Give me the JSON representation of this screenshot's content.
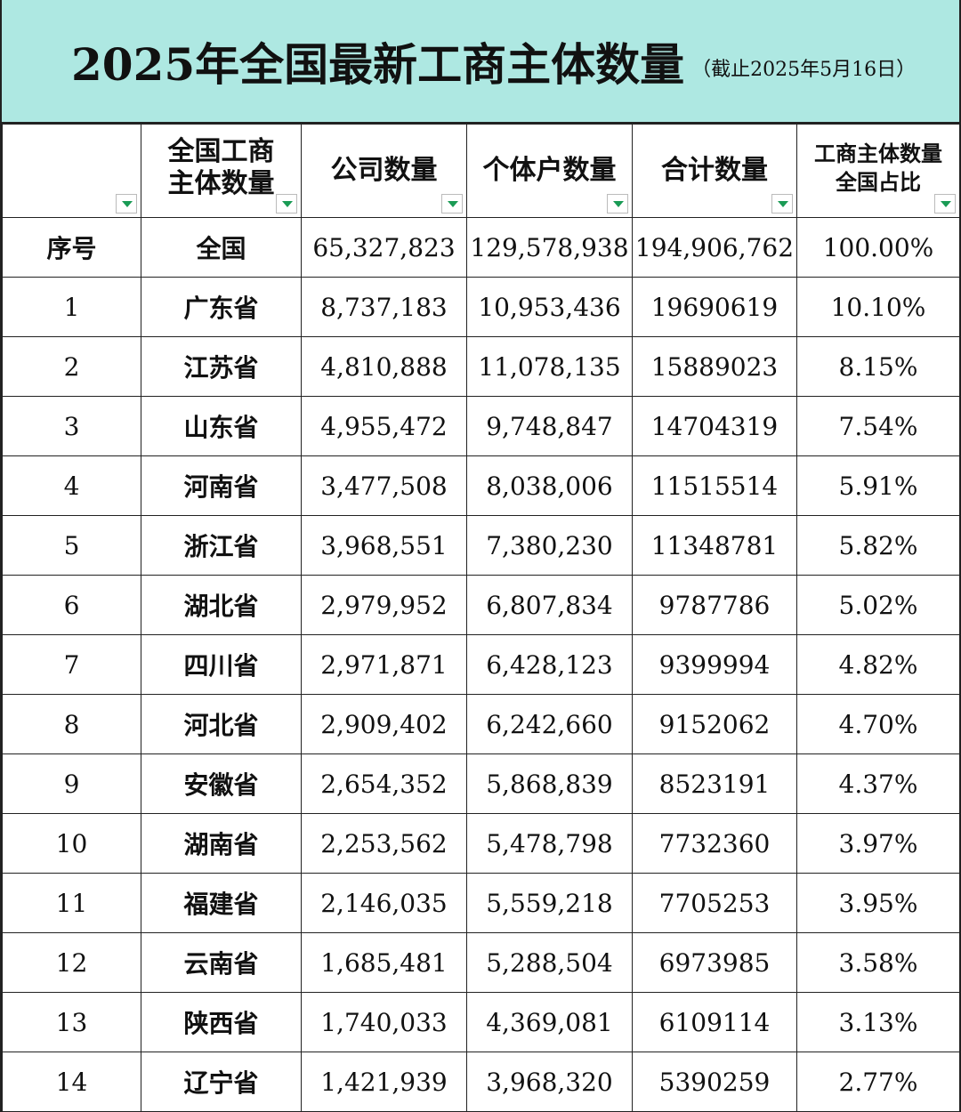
{
  "title": {
    "main": "2025年全国最新工商主体数量",
    "sub": "（截止2025年5月16日）"
  },
  "headers": {
    "col1": "",
    "col2_line1": "全国工商",
    "col2_line2": "主体数量",
    "col3": "公司数量",
    "col4": "个体户数量",
    "col5": "合计数量",
    "col6_line1": "工商主体数量",
    "col6_line2": "全国占比"
  },
  "icons": {
    "filter": "filter-dropdown-icon",
    "filter_color": "#1a9b55"
  },
  "colors": {
    "title_bg": "#aee8e2"
  },
  "rows": [
    {
      "idx": "序号",
      "region": "全国",
      "companies": "65,327,823",
      "individual": "129,578,938",
      "total": "194,906,762",
      "share": "100.00%"
    },
    {
      "idx": "1",
      "region": "广东省",
      "companies": "8,737,183",
      "individual": "10,953,436",
      "total": "19690619",
      "share": "10.10%"
    },
    {
      "idx": "2",
      "region": "江苏省",
      "companies": "4,810,888",
      "individual": "11,078,135",
      "total": "15889023",
      "share": "8.15%"
    },
    {
      "idx": "3",
      "region": "山东省",
      "companies": "4,955,472",
      "individual": "9,748,847",
      "total": "14704319",
      "share": "7.54%"
    },
    {
      "idx": "4",
      "region": "河南省",
      "companies": "3,477,508",
      "individual": "8,038,006",
      "total": "11515514",
      "share": "5.91%"
    },
    {
      "idx": "5",
      "region": "浙江省",
      "companies": "3,968,551",
      "individual": "7,380,230",
      "total": "11348781",
      "share": "5.82%"
    },
    {
      "idx": "6",
      "region": "湖北省",
      "companies": "2,979,952",
      "individual": "6,807,834",
      "total": "9787786",
      "share": "5.02%"
    },
    {
      "idx": "7",
      "region": "四川省",
      "companies": "2,971,871",
      "individual": "6,428,123",
      "total": "9399994",
      "share": "4.82%"
    },
    {
      "idx": "8",
      "region": "河北省",
      "companies": "2,909,402",
      "individual": "6,242,660",
      "total": "9152062",
      "share": "4.70%"
    },
    {
      "idx": "9",
      "region": "安徽省",
      "companies": "2,654,352",
      "individual": "5,868,839",
      "total": "8523191",
      "share": "4.37%"
    },
    {
      "idx": "10",
      "region": "湖南省",
      "companies": "2,253,562",
      "individual": "5,478,798",
      "total": "7732360",
      "share": "3.97%"
    },
    {
      "idx": "11",
      "region": "福建省",
      "companies": "2,146,035",
      "individual": "5,559,218",
      "total": "7705253",
      "share": "3.95%"
    },
    {
      "idx": "12",
      "region": "云南省",
      "companies": "1,685,481",
      "individual": "5,288,504",
      "total": "6973985",
      "share": "3.58%"
    },
    {
      "idx": "13",
      "region": "陕西省",
      "companies": "1,740,033",
      "individual": "4,369,081",
      "total": "6109114",
      "share": "3.13%"
    },
    {
      "idx": "14",
      "region": "辽宁省",
      "companies": "1,421,939",
      "individual": "3,968,320",
      "total": "5390259",
      "share": "2.77%"
    }
  ]
}
